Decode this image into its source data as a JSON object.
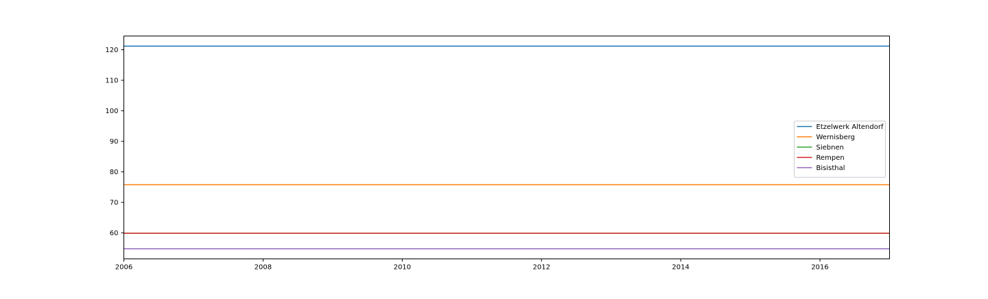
{
  "chart_data": {
    "type": "line",
    "title": "",
    "xlabel": "",
    "ylabel": "",
    "xlim": [
      2006,
      2017.0
    ],
    "ylim": [
      51.5,
      124.5
    ],
    "x_ticks": [
      2006,
      2008,
      2010,
      2012,
      2014,
      2016
    ],
    "y_ticks": [
      60,
      70,
      80,
      90,
      100,
      110,
      120
    ],
    "grid": false,
    "legend_position": "center-right",
    "x": [
      2006,
      2017
    ],
    "series": [
      {
        "name": "Etzelwerk Altendorf",
        "color": "#1f77b4",
        "values": [
          121.2,
          121.2
        ]
      },
      {
        "name": "Wernisberg",
        "color": "#ff7f0e",
        "values": [
          75.8,
          75.8
        ]
      },
      {
        "name": "Siebnen",
        "color": "#2ca02c",
        "values": [
          59.9,
          59.9
        ]
      },
      {
        "name": "Rempen",
        "color": "#d62728",
        "values": [
          59.9,
          59.9
        ]
      },
      {
        "name": "Bisisthal",
        "color": "#9467bd",
        "values": [
          54.8,
          54.8
        ]
      }
    ]
  }
}
